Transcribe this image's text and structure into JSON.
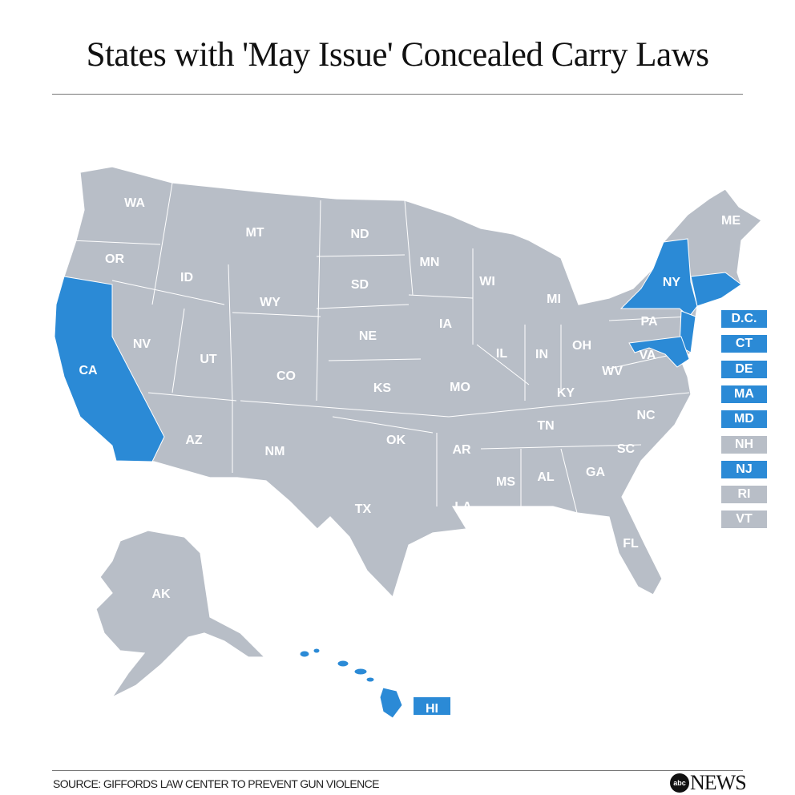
{
  "title": "States with 'May Issue' Concealed Carry Laws",
  "colors": {
    "may_issue": "#2b8ad6",
    "other": "#b8bec7"
  },
  "map": {
    "may_issue_states": [
      "CA",
      "NY",
      "NJ",
      "MD",
      "DE",
      "MA",
      "CT",
      "HI",
      "D.C."
    ],
    "labels": {
      "WA": "WA",
      "OR": "OR",
      "CA": "CA",
      "NV": "NV",
      "ID": "ID",
      "MT": "MT",
      "WY": "WY",
      "UT": "UT",
      "AZ": "AZ",
      "CO": "CO",
      "NM": "NM",
      "ND": "ND",
      "SD": "SD",
      "NE": "NE",
      "KS": "KS",
      "OK": "OK",
      "TX": "TX",
      "MN": "MN",
      "IA": "IA",
      "MO": "MO",
      "AR": "AR",
      "LA": "LA",
      "WI": "WI",
      "IL": "IL",
      "MI": "MI",
      "IN": "IN",
      "OH": "OH",
      "KY": "KY",
      "TN": "TN",
      "MS": "MS",
      "AL": "AL",
      "GA": "GA",
      "FL": "FL",
      "SC": "SC",
      "NC": "NC",
      "VA": "VA",
      "WV": "WV",
      "PA": "PA",
      "NY": "NY",
      "ME": "ME",
      "AK": "AK",
      "HI": "HI"
    }
  },
  "legend": [
    {
      "label": "D.C.",
      "may_issue": true
    },
    {
      "label": "CT",
      "may_issue": true
    },
    {
      "label": "DE",
      "may_issue": true
    },
    {
      "label": "MA",
      "may_issue": true
    },
    {
      "label": "MD",
      "may_issue": true
    },
    {
      "label": "NH",
      "may_issue": false
    },
    {
      "label": "NJ",
      "may_issue": true
    },
    {
      "label": "RI",
      "may_issue": false
    },
    {
      "label": "VT",
      "may_issue": false
    }
  ],
  "footer": {
    "source": "SOURCE: GIFFORDS LAW CENTER TO PREVENT GUN VIOLENCE",
    "logo_abc": "abc",
    "logo_news": "NEWS"
  }
}
